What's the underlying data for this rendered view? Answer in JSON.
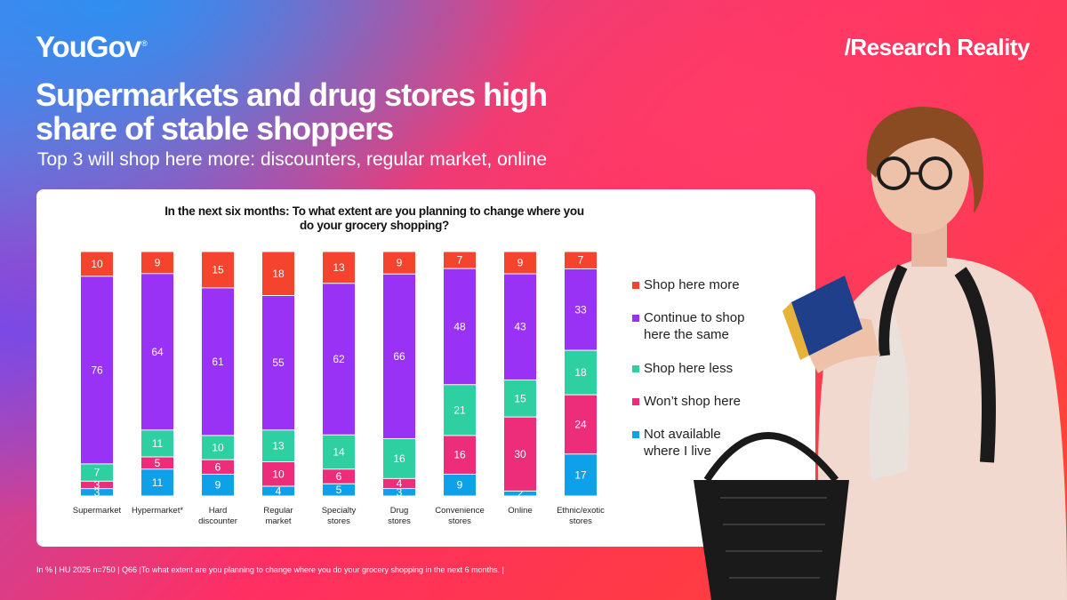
{
  "brand": {
    "logo": "YouGov",
    "logo_mark": "®",
    "tagline": "/Research Reality"
  },
  "header": {
    "title": "Supermarkets and drug stores high share of stable shoppers",
    "subtitle": "Top 3 will shop here more: discounters, regular market, online"
  },
  "footnote": "In % | HU 2025 n=750 | Q66 |To what extent are you planning to change where you do your grocery shopping in the next 6 months. |",
  "colors": {
    "more": "#f4442e",
    "same": "#9a32f5",
    "less": "#2ecfa0",
    "wont": "#ee2d7a",
    "na": "#0fa0ea"
  },
  "chart_data": {
    "type": "bar",
    "stacked": true,
    "title": "In the next six months: To what extent are you planning to change where you do your grocery shopping?",
    "categories": [
      "Supermarket",
      "Hypermarket*",
      "Hard discounter",
      "Regular market",
      "Specialty stores",
      "Drug stores",
      "Convenience stores",
      "Online",
      "Ethnic/exotic stores"
    ],
    "series": [
      {
        "name": "Not available where I live",
        "key": "na",
        "values": [
          3,
          11,
          9,
          4,
          5,
          3,
          9,
          2,
          17
        ]
      },
      {
        "name": "Won't shop here",
        "key": "wont",
        "values": [
          3,
          5,
          6,
          10,
          6,
          4,
          16,
          30,
          24
        ]
      },
      {
        "name": "Shop here less",
        "key": "less",
        "values": [
          7,
          11,
          10,
          13,
          14,
          16,
          21,
          15,
          18
        ]
      },
      {
        "name": "Continue to shop here the same",
        "key": "same",
        "values": [
          76,
          64,
          61,
          55,
          62,
          66,
          48,
          43,
          33
        ]
      },
      {
        "name": "Shop here more",
        "key": "more",
        "values": [
          10,
          9,
          15,
          18,
          13,
          9,
          7,
          9,
          7
        ]
      }
    ],
    "legend_order": [
      "more",
      "same",
      "less",
      "wont",
      "na"
    ],
    "legend": {
      "more": "Shop here more",
      "same": "Continue to shop here the same",
      "less": "Shop here less",
      "wont": "Won’t shop here",
      "na": "Not available where I live"
    },
    "legend_position": "right",
    "ylim": [
      0,
      100
    ],
    "grid": false
  }
}
